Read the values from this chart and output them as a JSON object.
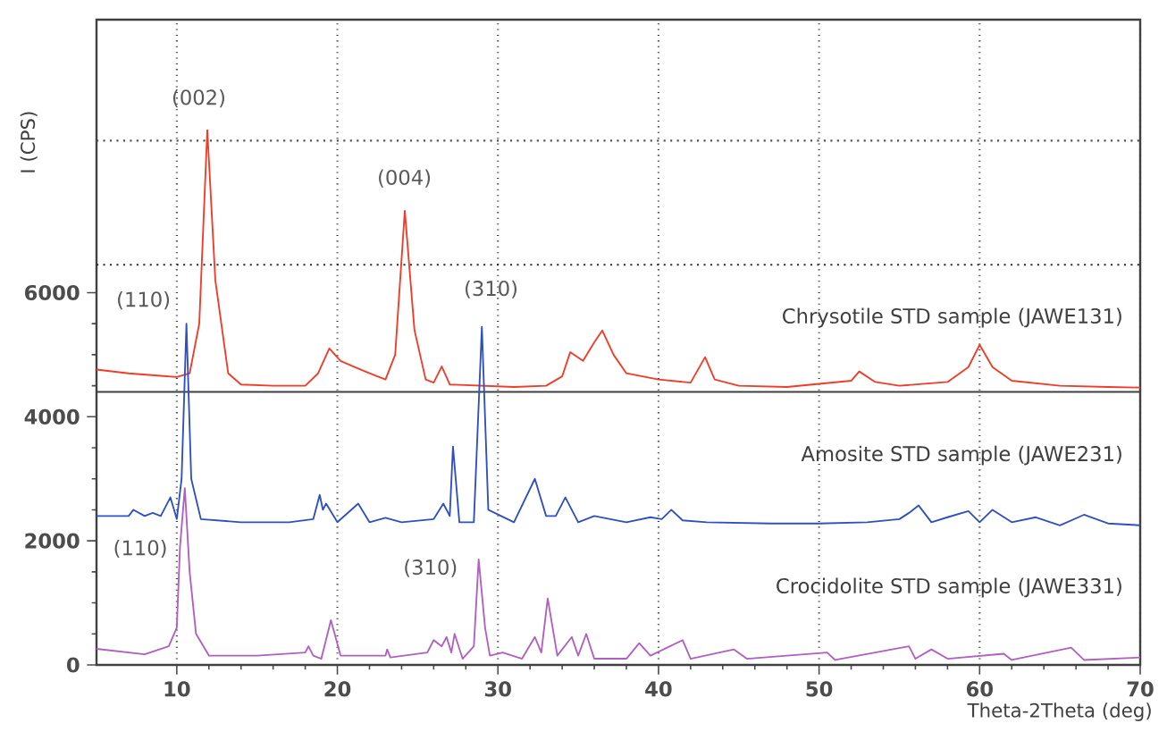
{
  "chart_data": {
    "type": "line",
    "xlabel": "Theta-2Theta (deg)",
    "ylabel": "I (CPS)",
    "xlim": [
      5,
      70
    ],
    "ylim": [
      0,
      10400
    ],
    "xticks": [
      10,
      20,
      30,
      40,
      50,
      60,
      70
    ],
    "yticks": [
      0,
      2000,
      4000,
      6000
    ],
    "grid": "x",
    "marker": "none",
    "line_style": "solid",
    "series": [
      {
        "name": "Chrysotile STD sample (JAWE131)",
        "color": "#f03c28",
        "x": [
          5,
          7,
          9,
          10,
          10.8,
          11.4,
          11.9,
          12.4,
          13.2,
          14,
          16,
          18,
          18.8,
          19.5,
          20.2,
          21,
          22,
          23,
          23.6,
          24.2,
          24.8,
          25.5,
          26,
          26.5,
          27,
          29,
          31,
          33,
          34,
          34.5,
          35.3,
          36,
          36.5,
          37.2,
          38,
          40,
          42,
          42.9,
          43.5,
          45,
          48,
          50,
          52,
          52.5,
          53.5,
          55,
          58,
          59.3,
          60,
          60.8,
          62,
          65,
          68,
          70
        ],
        "values": [
          4760,
          4700,
          4660,
          4640,
          4700,
          5500,
          8620,
          6200,
          4700,
          4520,
          4500,
          4500,
          4700,
          5100,
          4900,
          4810,
          4700,
          4600,
          5000,
          7320,
          5400,
          4600,
          4550,
          4810,
          4520,
          4500,
          4480,
          4500,
          4650,
          5040,
          4900,
          5200,
          5390,
          5000,
          4700,
          4600,
          4550,
          4960,
          4600,
          4500,
          4480,
          4530,
          4580,
          4730,
          4560,
          4500,
          4560,
          4800,
          5160,
          4800,
          4580,
          4500,
          4480,
          4470
        ]
      },
      {
        "name": "Amosite STD sample (JAWE231)",
        "color": "#3050c0",
        "x": [
          5,
          7,
          7.3,
          8,
          8.5,
          9,
          9.6,
          10,
          10.3,
          10.6,
          10.9,
          11.5,
          14,
          17,
          18.5,
          18.9,
          19.1,
          19.3,
          20,
          21.3,
          22,
          23,
          24,
          26,
          26.6,
          27,
          27.2,
          27.6,
          28.5,
          29,
          29.4,
          31,
          32.3,
          33,
          33.6,
          34.2,
          35,
          36,
          38,
          39.5,
          40.2,
          40.8,
          41.5,
          43,
          47,
          50,
          53,
          55,
          55.6,
          56.2,
          57,
          58,
          59.3,
          60,
          60.8,
          62,
          63.5,
          65,
          66.5,
          68,
          70
        ],
        "values": [
          2400,
          2400,
          2500,
          2400,
          2450,
          2400,
          2700,
          2350,
          3000,
          5500,
          3000,
          2350,
          2300,
          2300,
          2350,
          2740,
          2500,
          2600,
          2300,
          2600,
          2300,
          2370,
          2300,
          2350,
          2600,
          2400,
          3520,
          2300,
          2300,
          5450,
          2500,
          2300,
          3000,
          2400,
          2400,
          2700,
          2300,
          2400,
          2300,
          2380,
          2350,
          2500,
          2330,
          2300,
          2280,
          2280,
          2300,
          2350,
          2450,
          2570,
          2300,
          2380,
          2480,
          2300,
          2500,
          2300,
          2380,
          2250,
          2420,
          2280,
          2250
        ]
      },
      {
        "name": "Crocidolite STD sample (JAWE331)",
        "color": "#b060c0",
        "x": [
          5,
          8,
          9.5,
          10,
          10.2,
          10.5,
          10.8,
          11.2,
          12,
          15,
          18,
          18.2,
          18.5,
          19,
          19.6,
          20.2,
          23,
          23.1,
          23.3,
          25.6,
          26,
          26.5,
          26.8,
          27.1,
          27.3,
          27.8,
          28.5,
          28.8,
          29.2,
          29.5,
          30.3,
          31.5,
          32.3,
          32.7,
          33.1,
          33.7,
          34.6,
          35,
          35.5,
          36,
          38,
          38.8,
          39.5,
          41.5,
          42,
          44.7,
          45.5,
          50.5,
          51,
          55.6,
          56,
          57,
          58,
          61.5,
          62,
          65.7,
          66.5,
          70
        ],
        "values": [
          260,
          170,
          300,
          600,
          1900,
          2850,
          1500,
          500,
          150,
          150,
          200,
          300,
          150,
          100,
          720,
          150,
          150,
          250,
          120,
          200,
          400,
          300,
          450,
          200,
          500,
          100,
          300,
          1700,
          600,
          150,
          200,
          100,
          450,
          200,
          1070,
          150,
          450,
          150,
          500,
          100,
          100,
          350,
          150,
          400,
          100,
          250,
          100,
          200,
          80,
          300,
          100,
          250,
          100,
          180,
          80,
          280,
          80,
          120
        ]
      }
    ],
    "ref_lines": [
      {
        "axis": "y",
        "value": 8450,
        "color": "#505050",
        "line_style": "dotted"
      },
      {
        "axis": "y",
        "value": 6450,
        "color": "#303030",
        "line_style": "dotted"
      },
      {
        "axis": "y",
        "value": 4400,
        "color": "#404040",
        "line_style": "solid"
      }
    ],
    "annotations": [
      "(002)",
      "(004)",
      "(110)",
      "(310)",
      "(110)",
      "(310)"
    ]
  }
}
